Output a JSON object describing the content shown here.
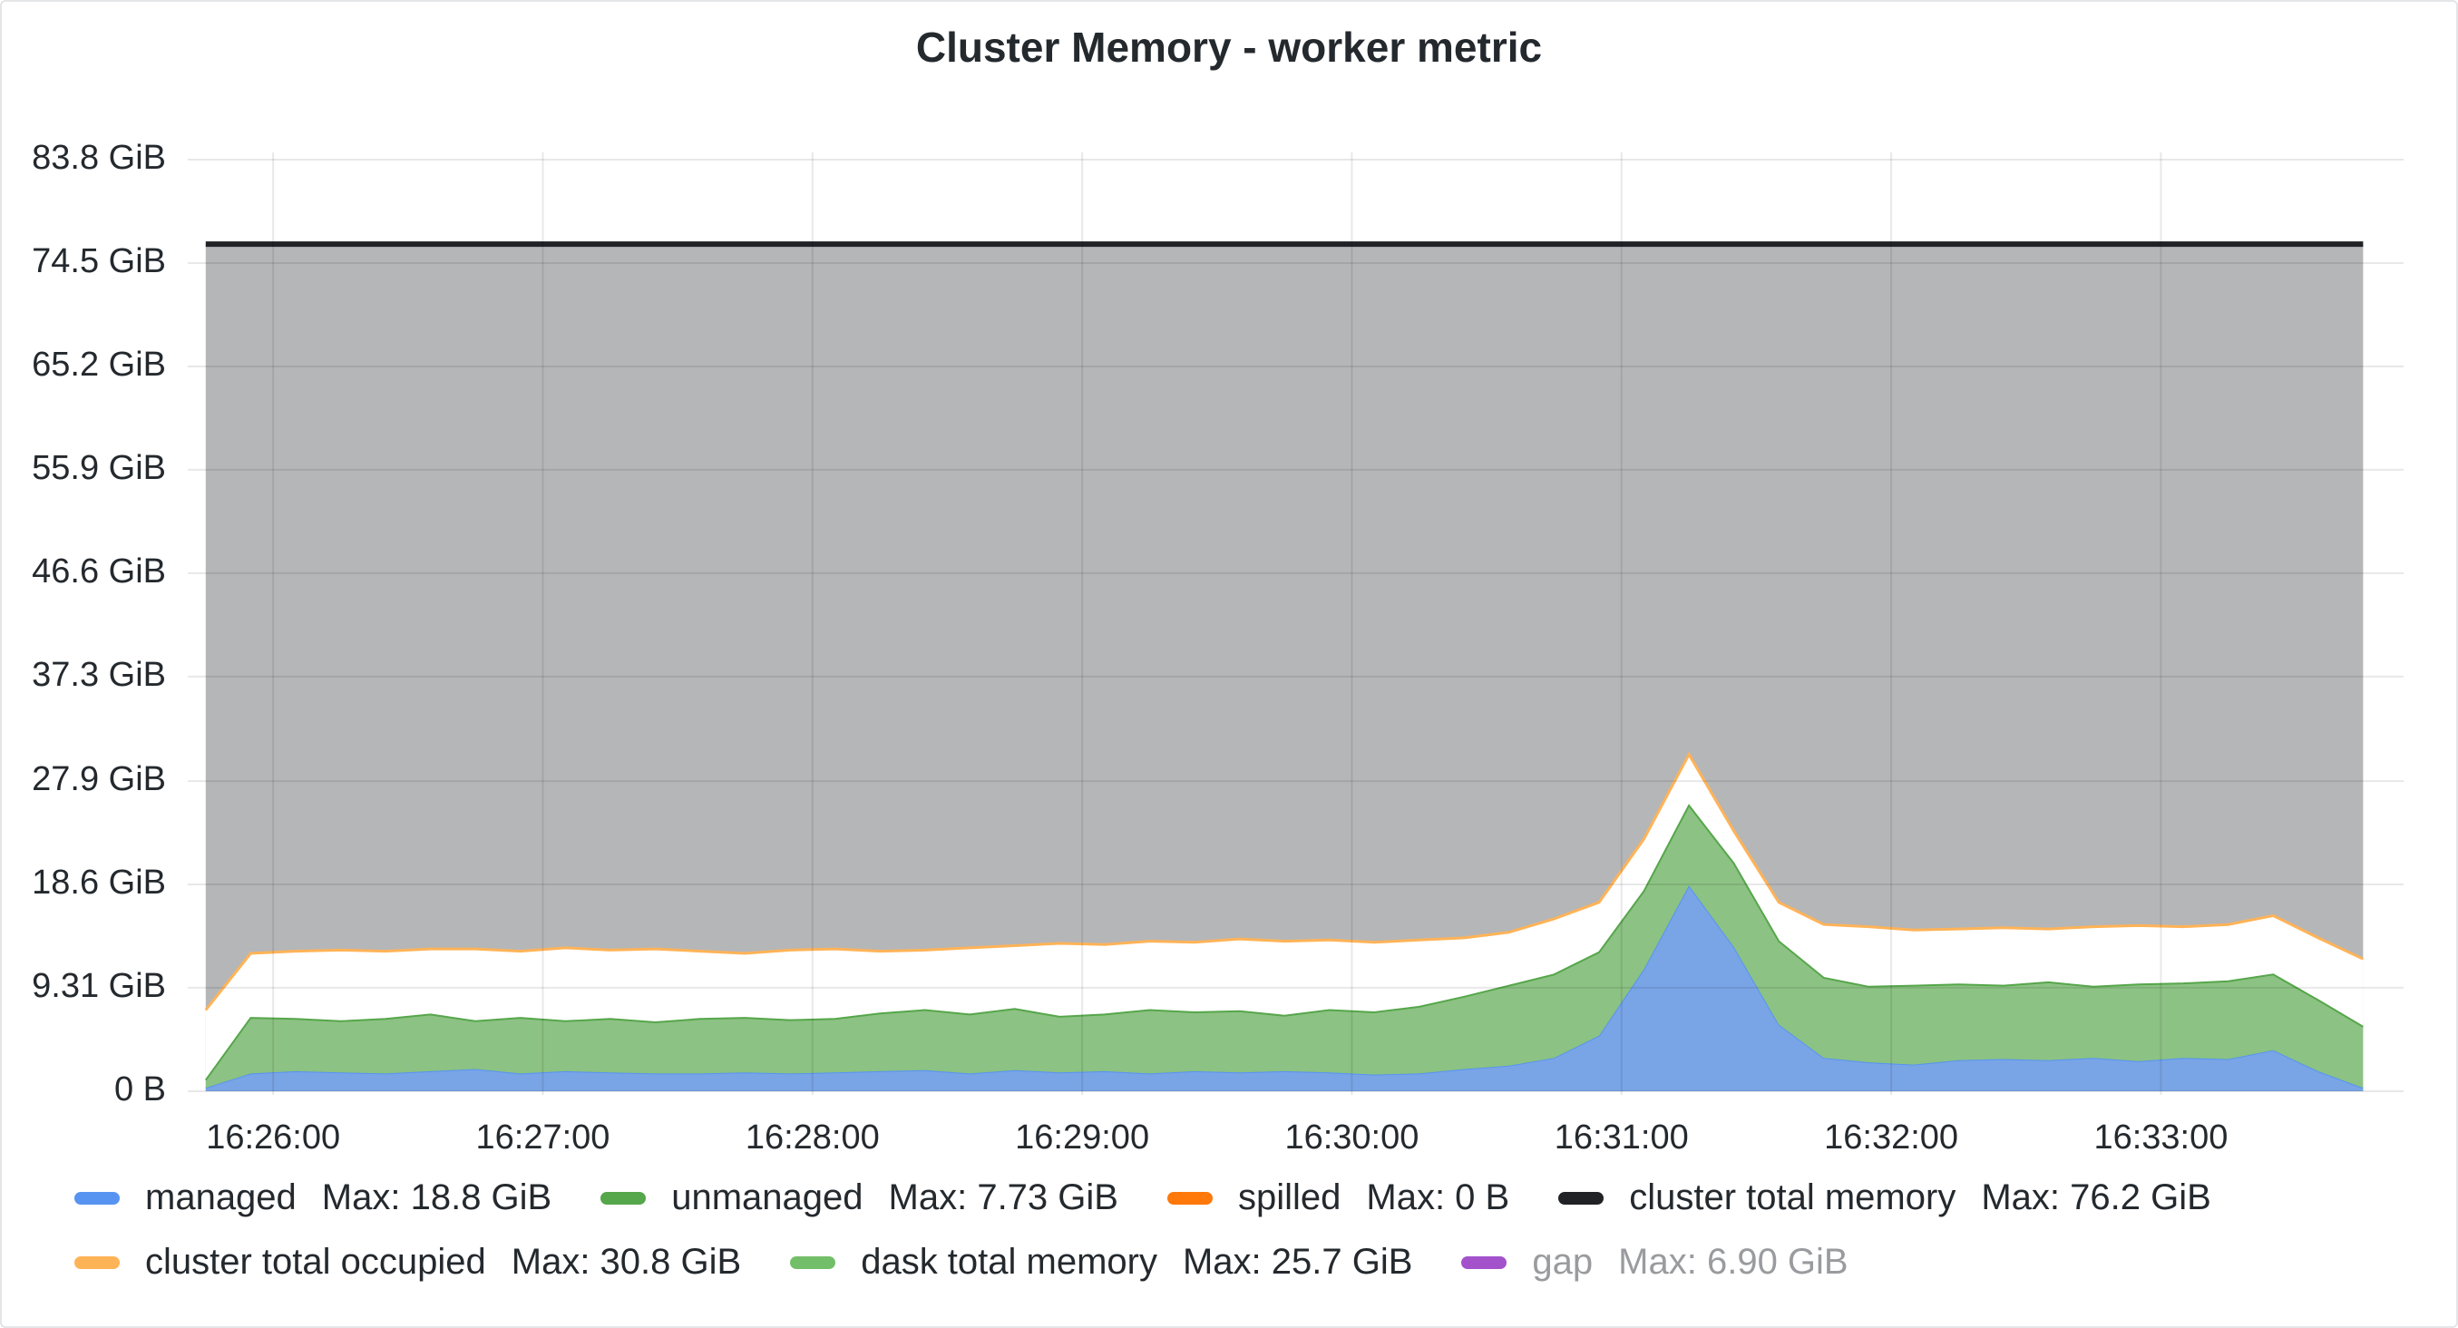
{
  "chart_data": {
    "type": "stacked-area",
    "title": "Cluster Memory - worker metric",
    "x": [
      "16:25:45",
      "16:25:55",
      "16:26:05",
      "16:26:15",
      "16:26:25",
      "16:26:35",
      "16:26:45",
      "16:26:55",
      "16:27:05",
      "16:27:15",
      "16:27:25",
      "16:27:35",
      "16:27:45",
      "16:27:55",
      "16:28:05",
      "16:28:15",
      "16:28:25",
      "16:28:35",
      "16:28:45",
      "16:28:55",
      "16:29:05",
      "16:29:15",
      "16:29:25",
      "16:29:35",
      "16:29:45",
      "16:29:55",
      "16:30:05",
      "16:30:15",
      "16:30:25",
      "16:30:35",
      "16:30:45",
      "16:30:55",
      "16:31:05",
      "16:31:15",
      "16:31:25",
      "16:31:35",
      "16:31:45",
      "16:31:55",
      "16:32:05",
      "16:32:15",
      "16:32:25",
      "16:32:35",
      "16:32:45",
      "16:32:55",
      "16:33:05",
      "16:33:15",
      "16:33:25",
      "16:33:35",
      "16:33:45"
    ],
    "xlim": [
      "16:25:41",
      "16:33:54"
    ],
    "xticks": [
      "16:26:00",
      "16:27:00",
      "16:28:00",
      "16:29:00",
      "16:30:00",
      "16:31:00",
      "16:32:00",
      "16:33:00"
    ],
    "ylim": [
      0,
      83.8
    ],
    "yticks": [
      {
        "value": 0,
        "label": "0 B"
      },
      {
        "value": 9.31,
        "label": "9.31 GiB"
      },
      {
        "value": 18.6,
        "label": "18.6 GiB"
      },
      {
        "value": 27.9,
        "label": "27.9 GiB"
      },
      {
        "value": 37.3,
        "label": "37.3 GiB"
      },
      {
        "value": 46.6,
        "label": "46.6 GiB"
      },
      {
        "value": 55.9,
        "label": "55.9 GiB"
      },
      {
        "value": 65.2,
        "label": "65.2 GiB"
      },
      {
        "value": 74.5,
        "label": "74.5 GiB"
      },
      {
        "value": 83.8,
        "label": "83.8 GiB"
      }
    ],
    "grid": true,
    "series": [
      {
        "name": "managed",
        "color": "#5794f2",
        "legend_stat": "Max: 18.8 GiB",
        "role": "stack",
        "values": [
          0.3,
          1.6,
          1.8,
          1.7,
          1.6,
          1.8,
          2.0,
          1.6,
          1.8,
          1.7,
          1.6,
          1.6,
          1.7,
          1.6,
          1.7,
          1.8,
          1.9,
          1.6,
          1.9,
          1.7,
          1.8,
          1.6,
          1.8,
          1.7,
          1.8,
          1.7,
          1.5,
          1.6,
          2.0,
          2.3,
          3.0,
          5.0,
          11.0,
          18.5,
          13.0,
          6.0,
          3.0,
          2.6,
          2.4,
          2.8,
          2.9,
          2.8,
          3.0,
          2.7,
          3.0,
          2.9,
          3.7,
          1.8,
          0.3
        ]
      },
      {
        "name": "unmanaged",
        "color": "#56a64b",
        "legend_stat": "Max: 7.73 GiB",
        "role": "stack",
        "values": [
          0.7,
          5.0,
          4.7,
          4.6,
          4.9,
          5.1,
          4.3,
          5.0,
          4.5,
          4.8,
          4.6,
          4.9,
          4.9,
          4.8,
          4.8,
          5.2,
          5.4,
          5.3,
          5.5,
          5.0,
          5.1,
          5.7,
          5.3,
          5.5,
          5.0,
          5.6,
          5.6,
          6.0,
          6.5,
          7.2,
          7.5,
          7.5,
          7.0,
          7.2,
          7.5,
          7.5,
          7.2,
          6.8,
          7.1,
          6.8,
          6.6,
          7.0,
          6.4,
          6.9,
          6.7,
          7.0,
          6.8,
          6.4,
          5.5
        ]
      },
      {
        "name": "spilled",
        "color": "#ff780a",
        "legend_stat": "Max: 0 B"
      },
      {
        "name": "cluster total memory",
        "color": "#202226",
        "legend_stat": "Max: 76.2 GiB",
        "role": "total",
        "values": [
          76.2,
          76.2,
          76.2,
          76.2,
          76.2,
          76.2,
          76.2,
          76.2,
          76.2,
          76.2,
          76.2,
          76.2,
          76.2,
          76.2,
          76.2,
          76.2,
          76.2,
          76.2,
          76.2,
          76.2,
          76.2,
          76.2,
          76.2,
          76.2,
          76.2,
          76.2,
          76.2,
          76.2,
          76.2,
          76.2,
          76.2,
          76.2,
          76.2,
          76.2,
          76.2,
          76.2,
          76.2,
          76.2,
          76.2,
          76.2,
          76.2,
          76.2,
          76.2,
          76.2,
          76.2,
          76.2,
          76.2,
          76.2,
          76.2
        ]
      },
      {
        "name": "cluster total occupied",
        "color": "#ffb357",
        "legend_stat": "Max: 30.8 GiB",
        "role": "occupied",
        "values": [
          7.3,
          12.4,
          12.6,
          12.7,
          12.6,
          12.8,
          12.8,
          12.6,
          12.9,
          12.7,
          12.8,
          12.6,
          12.4,
          12.7,
          12.8,
          12.6,
          12.7,
          12.9,
          13.1,
          13.3,
          13.2,
          13.5,
          13.4,
          13.7,
          13.5,
          13.6,
          13.4,
          13.6,
          13.8,
          14.3,
          15.5,
          17.0,
          22.7,
          30.3,
          23.4,
          17.0,
          15.0,
          14.8,
          14.5,
          14.6,
          14.7,
          14.6,
          14.8,
          14.9,
          14.8,
          15.0,
          15.8,
          13.8,
          11.9
        ]
      },
      {
        "name": "dask total memory",
        "color": "#73bf69",
        "legend_stat": "Max: 25.7 GiB"
      },
      {
        "name": "gap",
        "color": "#a352cc",
        "legend_stat": "Max: 6.90 GiB",
        "hidden": true
      }
    ]
  }
}
